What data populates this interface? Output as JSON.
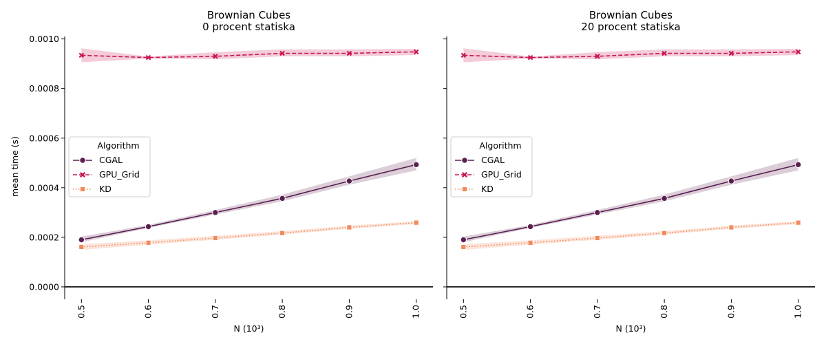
{
  "chart_data": [
    {
      "type": "line",
      "title": "Brownian Cubes\n0 procent statiska",
      "xlabel": "N (10³)",
      "ylabel": "mean time (s)",
      "x": [
        0.5,
        0.6,
        0.7,
        0.8,
        0.9,
        1.0
      ],
      "x_tick_labels": [
        "0.5",
        "0.6",
        "0.7",
        "0.8",
        "0.9",
        "1.0"
      ],
      "y_tick_values": [
        0.0,
        0.0002,
        0.0004,
        0.0006,
        0.0008,
        0.001
      ],
      "y_tick_labels": [
        "0.0000",
        "0.0002",
        "0.0004",
        "0.0006",
        "0.0008",
        "0.0010"
      ],
      "ylim": [
        -5e-05,
        0.00101
      ],
      "xlim": [
        0.475,
        1.025
      ],
      "grid": false,
      "legend": {
        "title": "Algorithm",
        "placement": "center-left"
      },
      "series": [
        {
          "name": "CGAL",
          "values": [
            0.00019,
            0.000243,
            0.0003,
            0.000357,
            0.000427,
            0.000493
          ],
          "ci_low": [
            0.00018,
            0.000238,
            0.000292,
            0.000345,
            0.000412,
            0.00047
          ],
          "ci_high": [
            0.000203,
            0.00025,
            0.00031,
            0.000372,
            0.000446,
            0.00052
          ],
          "color": "#5b1f4f",
          "marker": "circle",
          "linestyle": "solid"
        },
        {
          "name": "GPU_Grid",
          "values": [
            0.000934,
            0.000925,
            0.00093,
            0.000942,
            0.000942,
            0.000948
          ],
          "ci_low": [
            0.000906,
            0.000921,
            0.000918,
            0.00093,
            0.00093,
            0.000935
          ],
          "ci_high": [
            0.000962,
            0.000929,
            0.000947,
            0.000958,
            0.000958,
            0.00096
          ],
          "color": "#c8154f",
          "marker": "x",
          "linestyle": "dashed"
        },
        {
          "name": "KD",
          "values": [
            0.000161,
            0.000178,
            0.000197,
            0.000217,
            0.00024,
            0.000259
          ],
          "ci_low": [
            0.000149,
            0.00017,
            0.00019,
            0.000211,
            0.000234,
            0.000253
          ],
          "ci_high": [
            0.000172,
            0.000188,
            0.000206,
            0.000225,
            0.000247,
            0.000265
          ],
          "color": "#f08a5d",
          "marker": "square",
          "linestyle": "dotted"
        }
      ]
    },
    {
      "type": "line",
      "title": "Brownian Cubes\n20 procent statiska",
      "xlabel": "N (10³)",
      "ylabel": "",
      "x": [
        0.5,
        0.6,
        0.7,
        0.8,
        0.9,
        1.0
      ],
      "x_tick_labels": [
        "0.5",
        "0.6",
        "0.7",
        "0.8",
        "0.9",
        "1.0"
      ],
      "y_tick_values": [
        0.0,
        0.0002,
        0.0004,
        0.0006,
        0.0008,
        0.001
      ],
      "y_tick_labels": [],
      "ylim": [
        -5e-05,
        0.00101
      ],
      "xlim": [
        0.475,
        1.025
      ],
      "grid": false,
      "legend": {
        "title": "Algorithm",
        "placement": "center-left"
      },
      "series": [
        {
          "name": "CGAL",
          "values": [
            0.00019,
            0.000243,
            0.0003,
            0.000357,
            0.000427,
            0.000493
          ],
          "ci_low": [
            0.00018,
            0.000238,
            0.000292,
            0.000345,
            0.000412,
            0.00047
          ],
          "ci_high": [
            0.000203,
            0.00025,
            0.00031,
            0.000372,
            0.000446,
            0.00052
          ],
          "color": "#5b1f4f",
          "marker": "circle",
          "linestyle": "solid"
        },
        {
          "name": "GPU_Grid",
          "values": [
            0.000934,
            0.000925,
            0.00093,
            0.000942,
            0.000942,
            0.000948
          ],
          "ci_low": [
            0.000906,
            0.000921,
            0.000918,
            0.00093,
            0.00093,
            0.000935
          ],
          "ci_high": [
            0.000962,
            0.000929,
            0.000947,
            0.000958,
            0.000958,
            0.00096
          ],
          "color": "#c8154f",
          "marker": "x",
          "linestyle": "dashed"
        },
        {
          "name": "KD",
          "values": [
            0.000161,
            0.000178,
            0.000197,
            0.000217,
            0.00024,
            0.000259
          ],
          "ci_low": [
            0.000149,
            0.00017,
            0.00019,
            0.000211,
            0.000234,
            0.000253
          ],
          "ci_high": [
            0.000172,
            0.000188,
            0.000206,
            0.000225,
            0.000247,
            0.000265
          ],
          "color": "#f08a5d",
          "marker": "square",
          "linestyle": "dotted"
        }
      ]
    }
  ]
}
